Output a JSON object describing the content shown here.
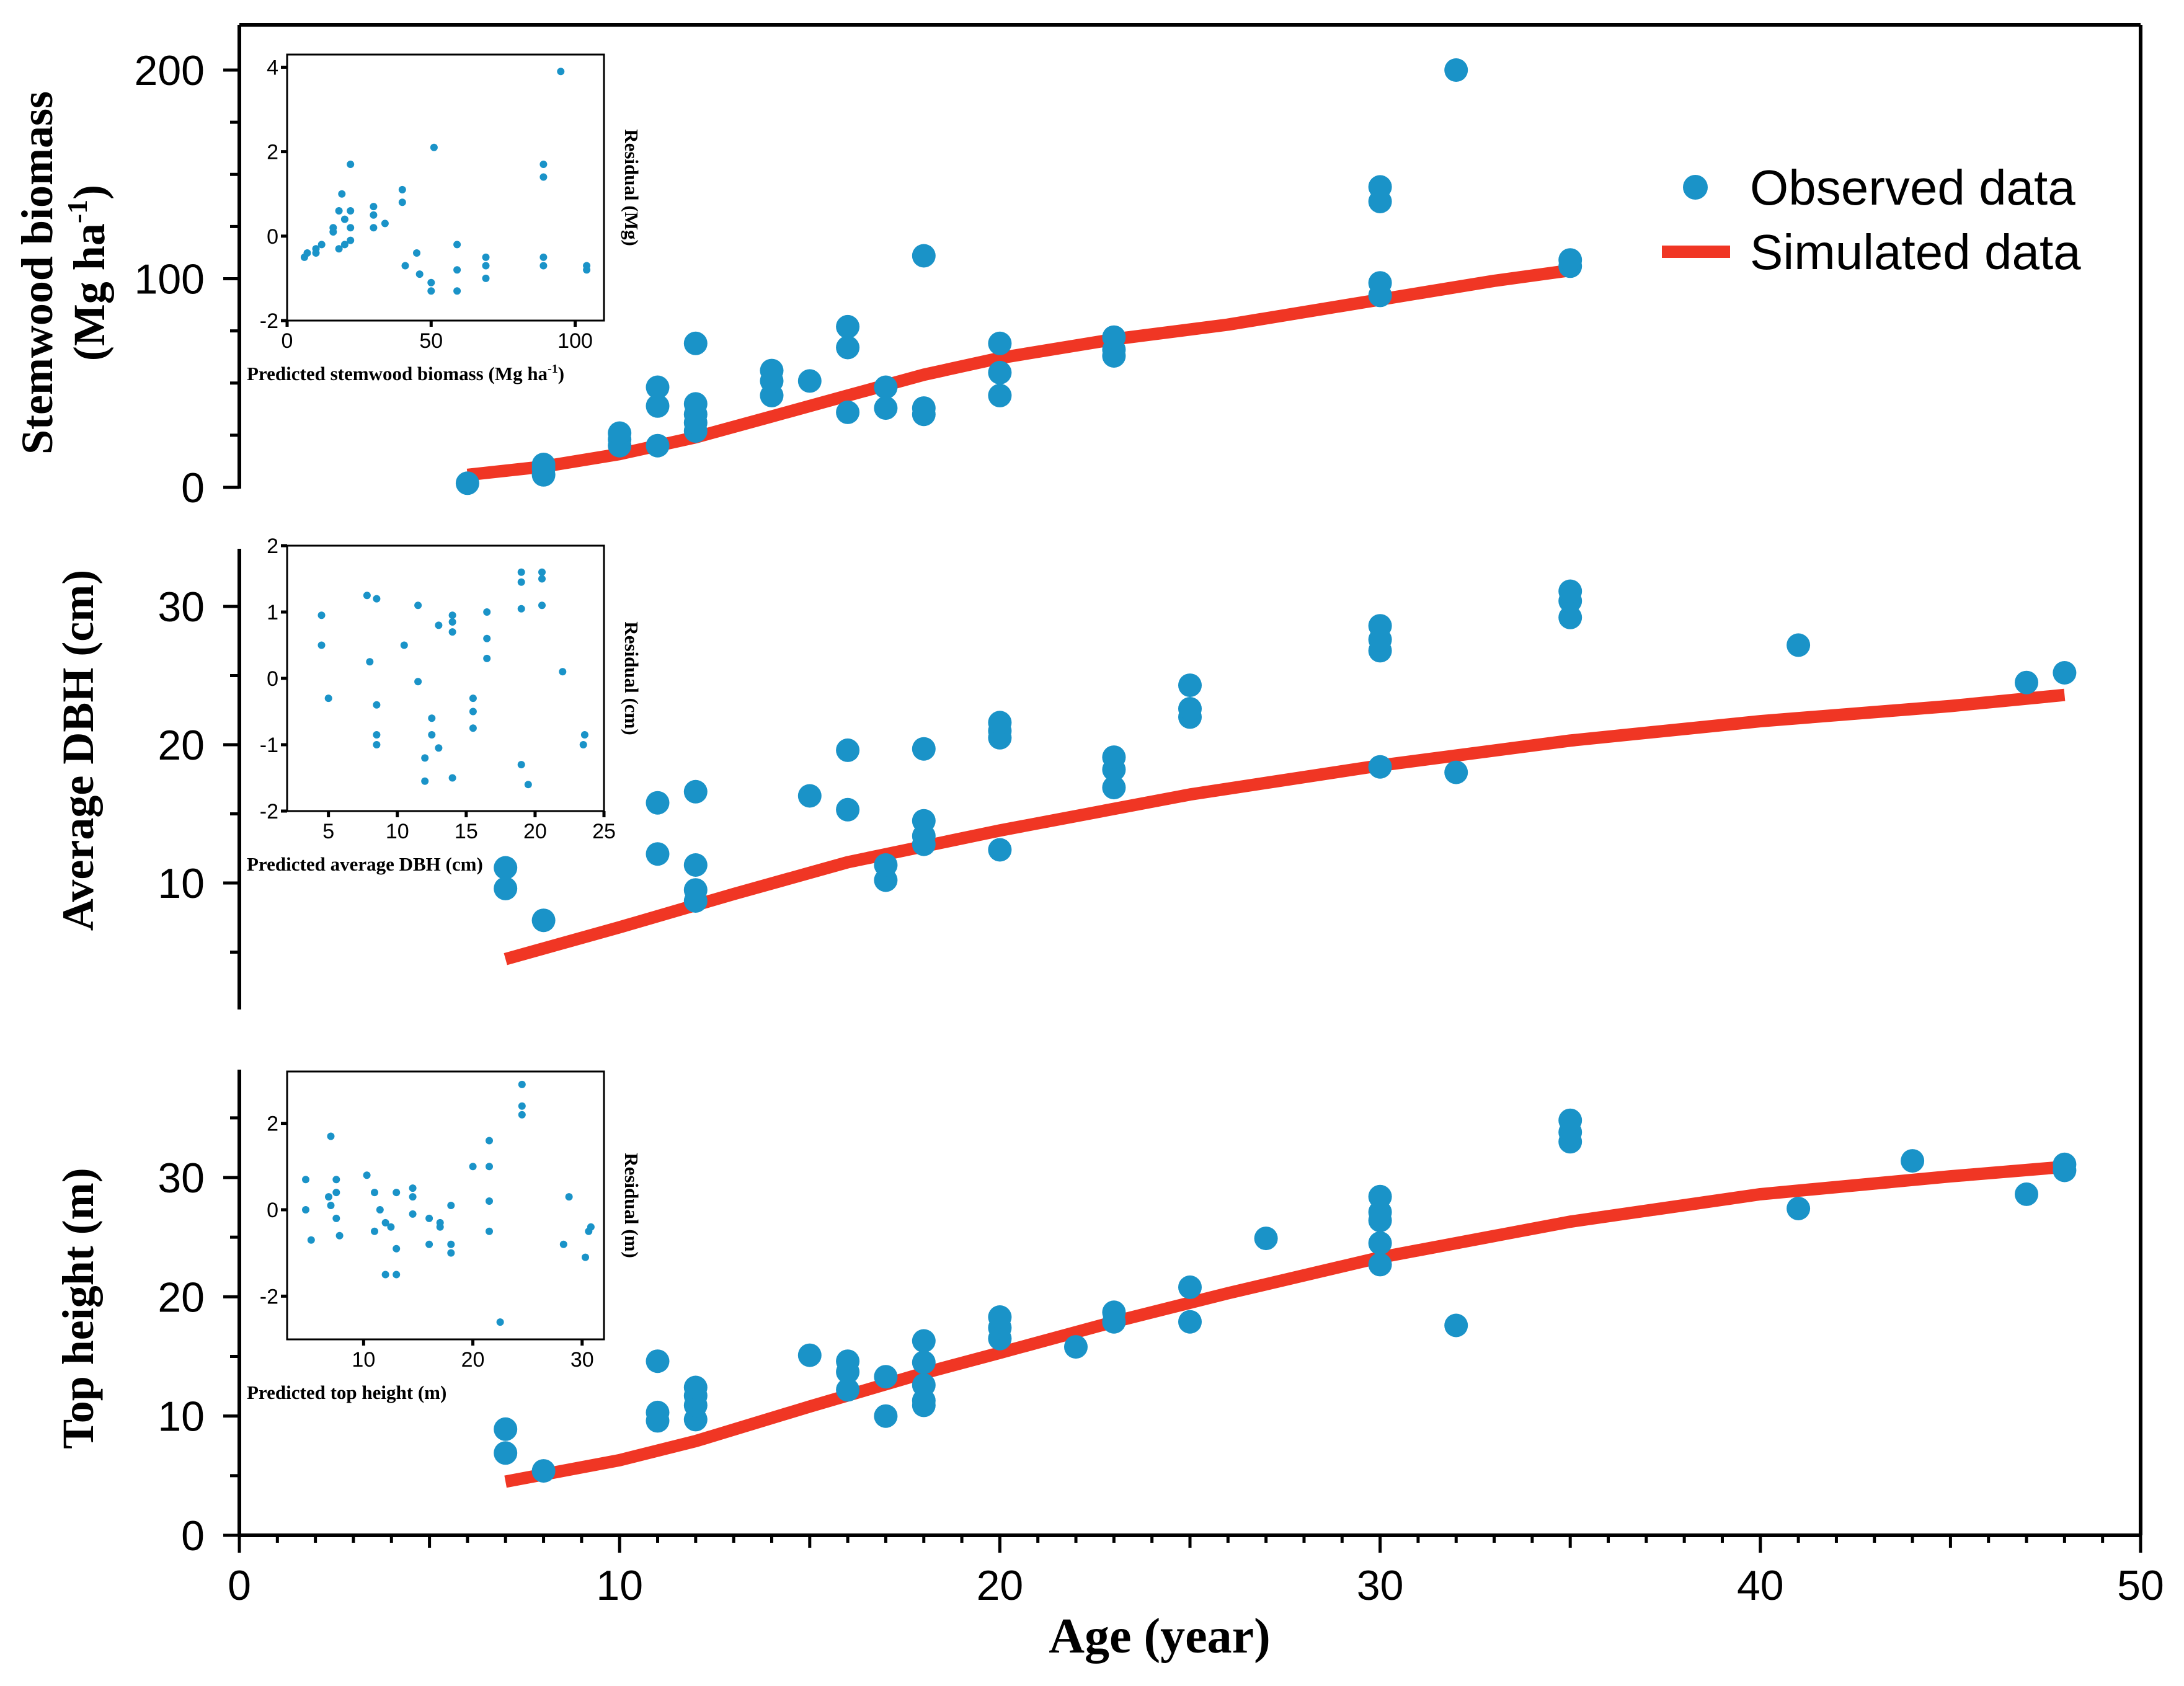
{
  "colors": {
    "observed": "#1a93c8",
    "simulated": "#f03624",
    "axis": "#000000"
  },
  "legend": {
    "observed_label": "Observed data",
    "simulated_label": "Simulated data",
    "position": "top-right"
  },
  "chart_data": [
    {
      "type": "scatter",
      "panel": "stemwood",
      "ylabel": "Stemwood biomass",
      "ylabel_unit": "(Mg ha",
      "ylabel_sup": "-1",
      "ylabel_close": ")",
      "xlim": [
        0,
        50
      ],
      "ylim": [
        0,
        220
      ],
      "yticks": [
        0,
        100,
        200
      ],
      "observed": [
        [
          6,
          2
        ],
        [
          8,
          6
        ],
        [
          8,
          9
        ],
        [
          8,
          11
        ],
        [
          10,
          20
        ],
        [
          10,
          23
        ],
        [
          10,
          26
        ],
        [
          11,
          20
        ],
        [
          11,
          39
        ],
        [
          11,
          48
        ],
        [
          12,
          27
        ],
        [
          12,
          31
        ],
        [
          12,
          35
        ],
        [
          12,
          40
        ],
        [
          12,
          69
        ],
        [
          14,
          44
        ],
        [
          14,
          51
        ],
        [
          14,
          56
        ],
        [
          15,
          51
        ],
        [
          16,
          36
        ],
        [
          16,
          67
        ],
        [
          16,
          77
        ],
        [
          17,
          38
        ],
        [
          17,
          48
        ],
        [
          18,
          35
        ],
        [
          18,
          38
        ],
        [
          18,
          111
        ],
        [
          20,
          44
        ],
        [
          20,
          55
        ],
        [
          20,
          69
        ],
        [
          23,
          63
        ],
        [
          23,
          66
        ],
        [
          23,
          72
        ],
        [
          30,
          92
        ],
        [
          30,
          98
        ],
        [
          30,
          137
        ],
        [
          30,
          144
        ],
        [
          32,
          200
        ],
        [
          35,
          106
        ],
        [
          35,
          109
        ]
      ],
      "simulated": [
        [
          6,
          6
        ],
        [
          8,
          10
        ],
        [
          10,
          16
        ],
        [
          12,
          24
        ],
        [
          14,
          34
        ],
        [
          16,
          44
        ],
        [
          18,
          54
        ],
        [
          20,
          62
        ],
        [
          23,
          71
        ],
        [
          26,
          78
        ],
        [
          30,
          90
        ],
        [
          33,
          99
        ],
        [
          35,
          104
        ]
      ],
      "inset": {
        "xlabel": "Predicted stemwood biomass (Mg ha",
        "xlabel_sup": "-1",
        "xlabel_close": ")",
        "ylabel": "Residual (Mg)",
        "xlim": [
          0,
          110
        ],
        "ylim": [
          -2,
          4.3
        ],
        "xticks": [
          0,
          50,
          100
        ],
        "yticks": [
          -2,
          0,
          2,
          4
        ],
        "points": [
          [
            6,
            -0.5
          ],
          [
            7,
            -0.4
          ],
          [
            10,
            -0.3
          ],
          [
            10,
            -0.4
          ],
          [
            12,
            -0.2
          ],
          [
            16,
            0.1
          ],
          [
            16,
            0.2
          ],
          [
            18,
            -0.3
          ],
          [
            18,
            0.6
          ],
          [
            19,
            1.0
          ],
          [
            20,
            0.4
          ],
          [
            20,
            -0.2
          ],
          [
            22,
            1.7
          ],
          [
            22,
            0.6
          ],
          [
            22,
            0.2
          ],
          [
            22,
            -0.1
          ],
          [
            30,
            0.7
          ],
          [
            30,
            0.5
          ],
          [
            30,
            0.2
          ],
          [
            34,
            0.3
          ],
          [
            40,
            1.1
          ],
          [
            40,
            0.8
          ],
          [
            41,
            -0.7
          ],
          [
            45,
            -0.4
          ],
          [
            46,
            -0.9
          ],
          [
            50,
            -1.1
          ],
          [
            50,
            -1.3
          ],
          [
            51,
            2.1
          ],
          [
            59,
            -0.2
          ],
          [
            59,
            -0.8
          ],
          [
            59,
            -1.3
          ],
          [
            69,
            -0.5
          ],
          [
            69,
            -0.7
          ],
          [
            69,
            -1.0
          ],
          [
            89,
            1.7
          ],
          [
            89,
            1.4
          ],
          [
            89,
            -0.5
          ],
          [
            89,
            -0.7
          ],
          [
            95,
            3.9
          ],
          [
            104,
            -0.7
          ],
          [
            104,
            -0.8
          ]
        ]
      }
    },
    {
      "type": "scatter",
      "panel": "dbh",
      "ylabel": "Average DBH (cm)",
      "xlim": [
        0,
        50
      ],
      "ylim": [
        0,
        35
      ],
      "yticks": [
        10,
        20,
        30
      ],
      "observed": [
        [
          7,
          9.6
        ],
        [
          7,
          11.1
        ],
        [
          8,
          7.3
        ],
        [
          11,
          12.1
        ],
        [
          11,
          15.8
        ],
        [
          12,
          8.7
        ],
        [
          12,
          9.5
        ],
        [
          12,
          11.3
        ],
        [
          12,
          16.6
        ],
        [
          15,
          16.3
        ],
        [
          16,
          15.3
        ],
        [
          16,
          19.6
        ],
        [
          17,
          10.2
        ],
        [
          17,
          11.3
        ],
        [
          18,
          12.8
        ],
        [
          18,
          13.4
        ],
        [
          18,
          14.5
        ],
        [
          18,
          19.7
        ],
        [
          20,
          12.4
        ],
        [
          20,
          20.5
        ],
        [
          20,
          21.0
        ],
        [
          20,
          21.6
        ],
        [
          23,
          16.9
        ],
        [
          23,
          18.2
        ],
        [
          23,
          19.1
        ],
        [
          25,
          22.0
        ],
        [
          25,
          22.6
        ],
        [
          25,
          24.3
        ],
        [
          30,
          18.4
        ],
        [
          30,
          26.8
        ],
        [
          30,
          27.6
        ],
        [
          30,
          28.6
        ],
        [
          32,
          18.0
        ],
        [
          35,
          29.2
        ],
        [
          35,
          30.4
        ],
        [
          35,
          31.1
        ],
        [
          41,
          27.2
        ],
        [
          47,
          24.5
        ],
        [
          48,
          25.2
        ]
      ],
      "simulated": [
        [
          7,
          4.5
        ],
        [
          10,
          6.8
        ],
        [
          13,
          9.2
        ],
        [
          16,
          11.5
        ],
        [
          20,
          13.8
        ],
        [
          25,
          16.4
        ],
        [
          30,
          18.5
        ],
        [
          35,
          20.3
        ],
        [
          40,
          21.7
        ],
        [
          45,
          22.8
        ],
        [
          48,
          23.6
        ]
      ],
      "inset": {
        "xlabel": "Predicted average DBH (cm)",
        "ylabel": "Residual (cm)",
        "xlim": [
          2,
          25
        ],
        "ylim": [
          -2,
          2
        ],
        "xticks": [
          5,
          10,
          15,
          20,
          25
        ],
        "yticks": [
          -2,
          -1,
          0,
          1,
          2
        ],
        "points": [
          [
            4.5,
            0.95
          ],
          [
            4.5,
            0.5
          ],
          [
            5,
            -0.3
          ],
          [
            7.8,
            1.25
          ],
          [
            8,
            0.25
          ],
          [
            8.5,
            1.2
          ],
          [
            8.5,
            -0.4
          ],
          [
            8.5,
            -0.85
          ],
          [
            8.5,
            -1.0
          ],
          [
            10.5,
            0.5
          ],
          [
            11.5,
            1.1
          ],
          [
            11.5,
            -0.05
          ],
          [
            12,
            -1.2
          ],
          [
            12,
            -1.55
          ],
          [
            12.5,
            -0.6
          ],
          [
            12.5,
            -0.85
          ],
          [
            13,
            -1.05
          ],
          [
            13,
            0.8
          ],
          [
            14,
            0.95
          ],
          [
            14,
            0.85
          ],
          [
            14,
            0.7
          ],
          [
            14,
            -1.5
          ],
          [
            15.5,
            -0.3
          ],
          [
            15.5,
            -0.5
          ],
          [
            15.5,
            -0.75
          ],
          [
            16.5,
            1.0
          ],
          [
            16.5,
            0.6
          ],
          [
            16.5,
            0.3
          ],
          [
            19,
            1.6
          ],
          [
            19,
            1.45
          ],
          [
            19,
            1.05
          ],
          [
            19,
            -1.3
          ],
          [
            19.5,
            -1.6
          ],
          [
            20.5,
            1.6
          ],
          [
            20.5,
            1.5
          ],
          [
            20.5,
            1.1
          ],
          [
            22,
            0.1
          ],
          [
            23.5,
            -1.0
          ],
          [
            23.6,
            -0.85
          ]
        ]
      }
    },
    {
      "type": "scatter",
      "panel": "height",
      "ylabel": "Top height (m)",
      "xlabel": "Age (year)",
      "xlim": [
        0,
        50
      ],
      "ylim": [
        0,
        39
      ],
      "xticks": [
        0,
        10,
        20,
        30,
        40,
        50
      ],
      "yticks": [
        0,
        10,
        20,
        30
      ],
      "observed": [
        [
          7,
          6.9
        ],
        [
          7,
          8.9
        ],
        [
          8,
          5.4
        ],
        [
          11,
          9.6
        ],
        [
          11,
          10.3
        ],
        [
          11,
          14.6
        ],
        [
          12,
          9.7
        ],
        [
          12,
          10.9
        ],
        [
          12,
          11.7
        ],
        [
          12,
          12.4
        ],
        [
          15,
          15.1
        ],
        [
          16,
          12.2
        ],
        [
          16,
          13.7
        ],
        [
          16,
          14.6
        ],
        [
          17,
          10.0
        ],
        [
          17,
          13.3
        ],
        [
          18,
          10.9
        ],
        [
          18,
          11.3
        ],
        [
          18,
          12.6
        ],
        [
          18,
          14.5
        ],
        [
          18,
          16.3
        ],
        [
          20,
          16.5
        ],
        [
          20,
          17.4
        ],
        [
          20,
          18.3
        ],
        [
          22,
          15.8
        ],
        [
          23,
          17.9
        ],
        [
          23,
          18.7
        ],
        [
          25,
          17.9
        ],
        [
          25,
          20.8
        ],
        [
          27,
          24.9
        ],
        [
          30,
          22.7
        ],
        [
          30,
          24.5
        ],
        [
          30,
          26.4
        ],
        [
          30,
          27.1
        ],
        [
          30,
          28.4
        ],
        [
          32,
          17.6
        ],
        [
          35,
          33.0
        ],
        [
          35,
          33.8
        ],
        [
          35,
          34.8
        ],
        [
          41,
          27.4
        ],
        [
          44,
          31.4
        ],
        [
          47,
          28.6
        ],
        [
          48,
          30.6
        ],
        [
          48,
          31.1
        ]
      ],
      "simulated": [
        [
          7,
          4.5
        ],
        [
          10,
          6.3
        ],
        [
          12,
          7.9
        ],
        [
          15,
          10.8
        ],
        [
          18,
          13.6
        ],
        [
          20,
          15.3
        ],
        [
          23,
          17.9
        ],
        [
          26,
          20.3
        ],
        [
          30,
          23.3
        ],
        [
          35,
          26.3
        ],
        [
          40,
          28.6
        ],
        [
          45,
          30.1
        ],
        [
          48,
          30.9
        ]
      ],
      "inset": {
        "xlabel": "Predicted top height (m)",
        "ylabel": "Residual (m)",
        "xlim": [
          3,
          32
        ],
        "ylim": [
          -3,
          3.2
        ],
        "xticks": [
          10,
          20,
          30
        ],
        "yticks": [
          -2,
          0,
          2
        ],
        "points": [
          [
            4.7,
            0.7
          ],
          [
            4.7,
            0.0
          ],
          [
            5.2,
            -0.7
          ],
          [
            6.8,
            0.3
          ],
          [
            7,
            1.7
          ],
          [
            7,
            0.1
          ],
          [
            7.5,
            0.4
          ],
          [
            7.5,
            0.7
          ],
          [
            7.5,
            -0.2
          ],
          [
            7.8,
            -0.6
          ],
          [
            10.3,
            0.8
          ],
          [
            11,
            0.4
          ],
          [
            11,
            -0.5
          ],
          [
            11.5,
            0.0
          ],
          [
            12,
            -0.3
          ],
          [
            12,
            -1.5
          ],
          [
            12.5,
            -0.4
          ],
          [
            13,
            0.4
          ],
          [
            13,
            -0.9
          ],
          [
            13,
            -1.5
          ],
          [
            14.5,
            0.3
          ],
          [
            14.5,
            0.5
          ],
          [
            14.5,
            -0.1
          ],
          [
            16,
            -0.2
          ],
          [
            16,
            -0.8
          ],
          [
            17,
            -0.3
          ],
          [
            17,
            -0.4
          ],
          [
            18,
            0.1
          ],
          [
            18,
            -0.8
          ],
          [
            18,
            -1.0
          ],
          [
            20,
            1.0
          ],
          [
            21.5,
            1.6
          ],
          [
            21.5,
            1.0
          ],
          [
            21.5,
            0.2
          ],
          [
            21.5,
            -0.5
          ],
          [
            22.5,
            -2.6
          ],
          [
            24.5,
            2.9
          ],
          [
            24.5,
            2.2
          ],
          [
            24.5,
            2.4
          ],
          [
            28.3,
            -0.8
          ],
          [
            28.8,
            0.3
          ],
          [
            30.3,
            -1.1
          ],
          [
            30.6,
            -0.5
          ],
          [
            30.8,
            -0.4
          ]
        ]
      }
    }
  ]
}
